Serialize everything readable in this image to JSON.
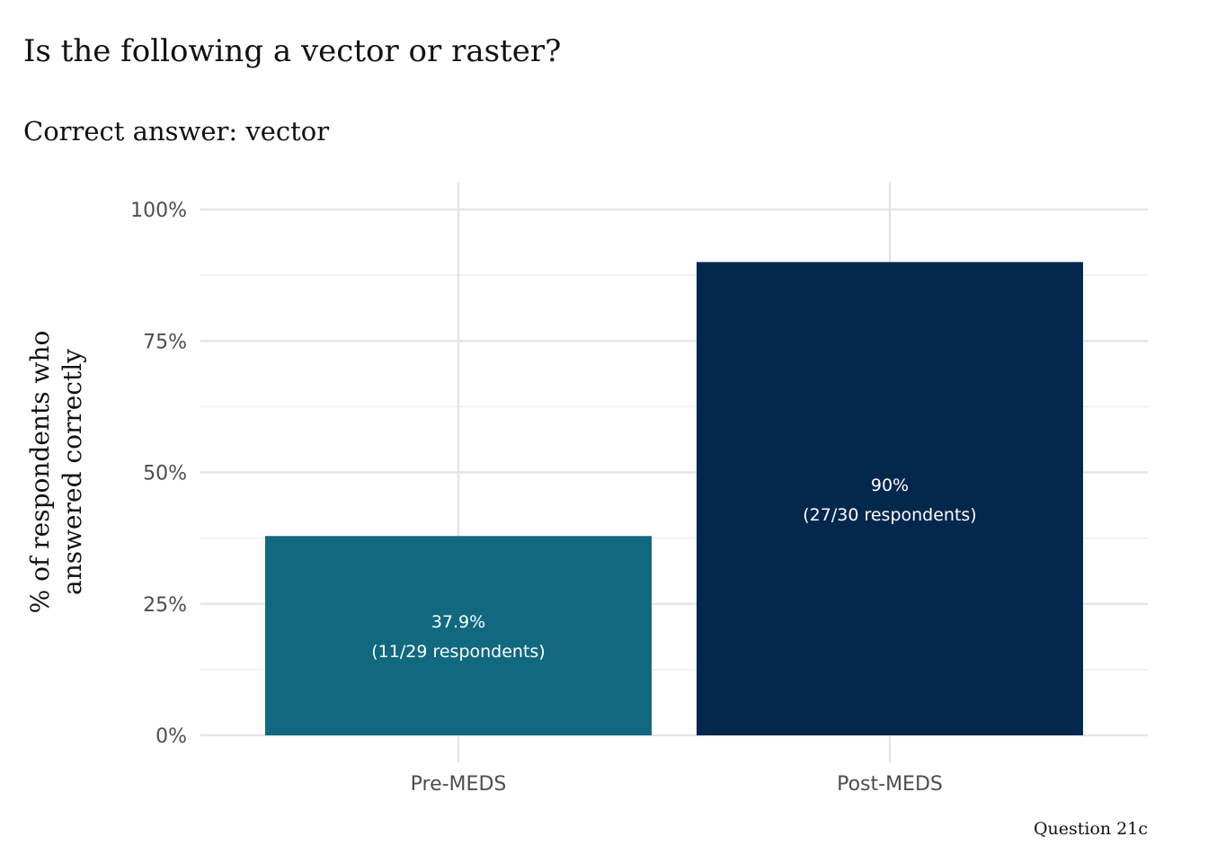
{
  "chart_data": {
    "type": "bar",
    "title": "Is the following a vector or raster?",
    "subtitle": "Correct answer: vector",
    "xlabel": "",
    "ylabel_lines": [
      "% of respondents who",
      "answered correctly"
    ],
    "caption": "Question 21c",
    "categories": [
      "Pre-MEDS",
      "Post-MEDS"
    ],
    "values": [
      37.9,
      90
    ],
    "bar_labels": [
      [
        "37.9%",
        "(11/29 respondents)"
      ],
      [
        "90%",
        "(27/30 respondents)"
      ]
    ],
    "colors": [
      "#10697e",
      "#04274d"
    ],
    "ylim": [
      0,
      100
    ],
    "yticks": [
      0,
      25,
      50,
      75,
      100
    ],
    "ytick_labels": [
      "0%",
      "25%",
      "50%",
      "75%",
      "100%"
    ],
    "grid": true,
    "legend": "none"
  }
}
